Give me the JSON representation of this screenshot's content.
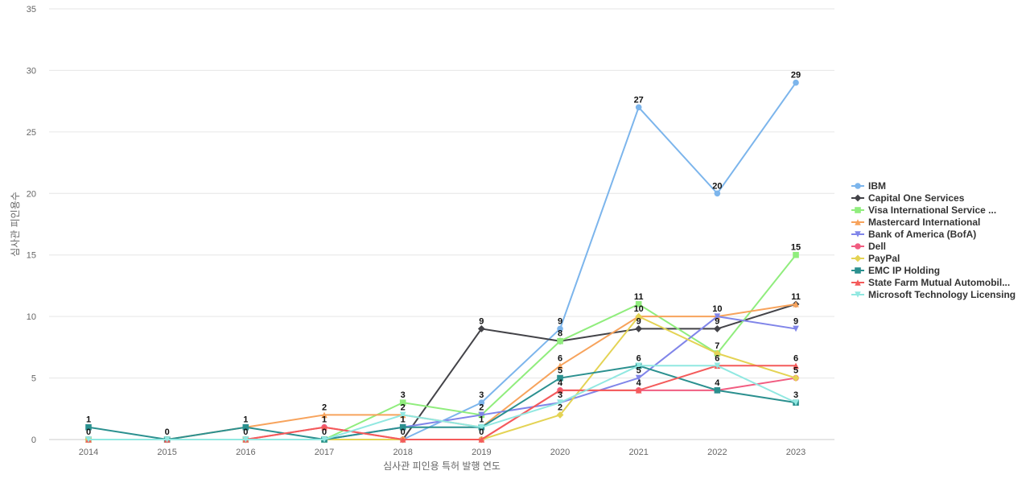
{
  "chart_data": {
    "type": "line",
    "xlabel": "심사관 피인용 특허 발행 연도",
    "ylabel": "심사관 피인용수",
    "ylim": [
      0,
      35
    ],
    "yticks": [
      0,
      5,
      10,
      15,
      20,
      25,
      30,
      35
    ],
    "categories": [
      "2014",
      "2015",
      "2016",
      "2017",
      "2018",
      "2019",
      "2020",
      "2021",
      "2022",
      "2023"
    ],
    "grid": true,
    "legend_position": "right",
    "series": [
      {
        "name": "IBM",
        "color": "#7cb5ec",
        "marker": "circle",
        "values": [
          0,
          0,
          0,
          0,
          0,
          3,
          9,
          27,
          20,
          29
        ]
      },
      {
        "name": "Capital One Services",
        "color": "#434348",
        "marker": "diamond",
        "values": [
          0,
          0,
          0,
          0,
          0,
          9,
          8,
          9,
          9,
          11
        ]
      },
      {
        "name": "Visa International Service ...",
        "color": "#90ed7d",
        "marker": "square",
        "values": [
          0,
          0,
          0,
          0,
          3,
          2,
          8,
          11,
          7,
          15
        ]
      },
      {
        "name": "Mastercard International",
        "color": "#f7a35c",
        "marker": "triangle",
        "values": [
          0,
          0,
          1,
          2,
          2,
          1,
          6,
          10,
          10,
          11
        ]
      },
      {
        "name": "Bank of America (BofA)",
        "color": "#8085e9",
        "marker": "triangle-down",
        "values": [
          0,
          0,
          0,
          0,
          1,
          2,
          3,
          5,
          10,
          9
        ]
      },
      {
        "name": "Dell",
        "color": "#f15c80",
        "marker": "circle",
        "values": [
          0,
          0,
          0,
          1,
          0,
          0,
          4,
          4,
          4,
          5
        ]
      },
      {
        "name": "PayPal",
        "color": "#e4d354",
        "marker": "diamond",
        "values": [
          0,
          0,
          0,
          0,
          0,
          0,
          2,
          10,
          7,
          5
        ]
      },
      {
        "name": "EMC IP Holding",
        "color": "#2b908f",
        "marker": "square",
        "values": [
          1,
          0,
          1,
          0,
          1,
          1,
          5,
          6,
          4,
          3
        ]
      },
      {
        "name": "State Farm Mutual Automobil...",
        "color": "#f45b5b",
        "marker": "triangle",
        "values": [
          0,
          0,
          0,
          1,
          0,
          0,
          4,
          4,
          6,
          6
        ]
      },
      {
        "name": "Microsoft Technology Licensing",
        "color": "#91e8e1",
        "marker": "triangle-down",
        "values": [
          0,
          0,
          0,
          0,
          2,
          1,
          3,
          6,
          6,
          3
        ]
      }
    ],
    "data_labels": [
      {
        "x": "2014",
        "y": 1,
        "text": "1"
      },
      {
        "x": "2014",
        "y": 0,
        "text": "0"
      },
      {
        "x": "2015",
        "y": 0,
        "text": "0"
      },
      {
        "x": "2016",
        "y": 1,
        "text": "1"
      },
      {
        "x": "2016",
        "y": 0,
        "text": "0"
      },
      {
        "x": "2017",
        "y": 2,
        "text": "2"
      },
      {
        "x": "2017",
        "y": 1,
        "text": "1"
      },
      {
        "x": "2017",
        "y": 0,
        "text": "0"
      },
      {
        "x": "2018",
        "y": 3,
        "text": "3"
      },
      {
        "x": "2018",
        "y": 2,
        "text": "2"
      },
      {
        "x": "2018",
        "y": 1,
        "text": "1"
      },
      {
        "x": "2018",
        "y": 0,
        "text": "0"
      },
      {
        "x": "2019",
        "y": 9,
        "text": "9"
      },
      {
        "x": "2019",
        "y": 3,
        "text": "3"
      },
      {
        "x": "2019",
        "y": 2,
        "text": "2"
      },
      {
        "x": "2019",
        "y": 1,
        "text": "1"
      },
      {
        "x": "2019",
        "y": 0,
        "text": "0"
      },
      {
        "x": "2020",
        "y": 9,
        "text": "9"
      },
      {
        "x": "2020",
        "y": 8,
        "text": "8"
      },
      {
        "x": "2020",
        "y": 6,
        "text": "6"
      },
      {
        "x": "2020",
        "y": 5,
        "text": "5"
      },
      {
        "x": "2020",
        "y": 4,
        "text": "4"
      },
      {
        "x": "2020",
        "y": 3,
        "text": "3"
      },
      {
        "x": "2020",
        "y": 2,
        "text": "2"
      },
      {
        "x": "2021",
        "y": 27,
        "text": "27"
      },
      {
        "x": "2021",
        "y": 11,
        "text": "11"
      },
      {
        "x": "2021",
        "y": 10,
        "text": "10"
      },
      {
        "x": "2021",
        "y": 9,
        "text": "9"
      },
      {
        "x": "2021",
        "y": 6,
        "text": "6"
      },
      {
        "x": "2021",
        "y": 5,
        "text": "5"
      },
      {
        "x": "2021",
        "y": 4,
        "text": "4"
      },
      {
        "x": "2022",
        "y": 20,
        "text": "20"
      },
      {
        "x": "2022",
        "y": 10,
        "text": "10"
      },
      {
        "x": "2022",
        "y": 9,
        "text": "9"
      },
      {
        "x": "2022",
        "y": 7,
        "text": "7"
      },
      {
        "x": "2022",
        "y": 6,
        "text": "6"
      },
      {
        "x": "2022",
        "y": 4,
        "text": "4"
      },
      {
        "x": "2023",
        "y": 29,
        "text": "29"
      },
      {
        "x": "2023",
        "y": 15,
        "text": "15"
      },
      {
        "x": "2023",
        "y": 11,
        "text": "11"
      },
      {
        "x": "2023",
        "y": 9,
        "text": "9"
      },
      {
        "x": "2023",
        "y": 6,
        "text": "6"
      },
      {
        "x": "2023",
        "y": 5,
        "text": "5"
      },
      {
        "x": "2023",
        "y": 3,
        "text": "3"
      }
    ]
  }
}
